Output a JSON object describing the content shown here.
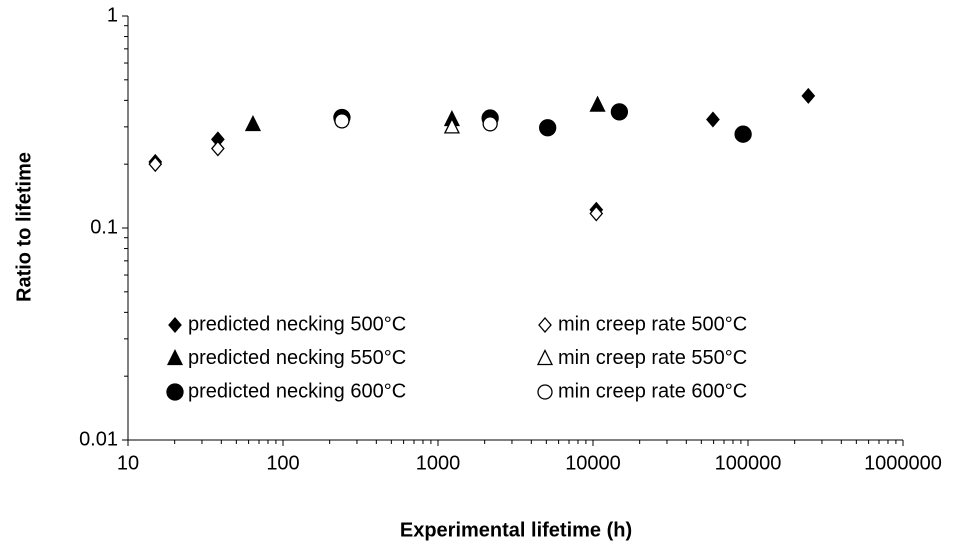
{
  "chart_data": {
    "type": "scatter",
    "x_label": "Experimental lifetime (h)",
    "y_label": "Ratio to lifetime",
    "x_log": true,
    "y_log": true,
    "xlim": [
      10,
      1000000
    ],
    "xticks": [
      10,
      100,
      1000,
      10000,
      100000,
      1000000
    ],
    "ylim": [
      0.01,
      1
    ],
    "yticks": [
      0.01,
      0.1,
      1
    ],
    "series": [
      {
        "name": "predicted necking 500°C",
        "marker": "diamond",
        "filled": true,
        "color": "#000000",
        "x": [
          15,
          38,
          10500,
          59400,
          245000
        ],
        "values": [
          0.205,
          0.262,
          0.122,
          0.325,
          0.42
        ]
      },
      {
        "name": "min creep rate 500°C",
        "marker": "diamond",
        "filled": false,
        "color": "#000000",
        "x": [
          15,
          38,
          10500
        ],
        "values": [
          0.2,
          0.237,
          0.117
        ]
      },
      {
        "name": "predicted necking 550°C",
        "marker": "triangle",
        "filled": true,
        "color": "#000000",
        "x": [
          64,
          1230,
          10700
        ],
        "values": [
          0.308,
          0.325,
          0.38
        ]
      },
      {
        "name": "min creep rate 550°C",
        "marker": "triangle",
        "filled": false,
        "color": "#000000",
        "x": [
          1230
        ],
        "values": [
          0.3
        ]
      },
      {
        "name": "predicted necking 600°C",
        "marker": "circle",
        "filled": true,
        "color": "#000000",
        "x": [
          240,
          2170,
          5100,
          14800,
          93000
        ],
        "values": [
          0.332,
          0.33,
          0.297,
          0.353,
          0.277
        ]
      },
      {
        "name": "min creep rate 600°C",
        "marker": "circle",
        "filled": false,
        "color": "#000000",
        "x": [
          240,
          2170
        ],
        "values": [
          0.32,
          0.31
        ]
      }
    ]
  }
}
